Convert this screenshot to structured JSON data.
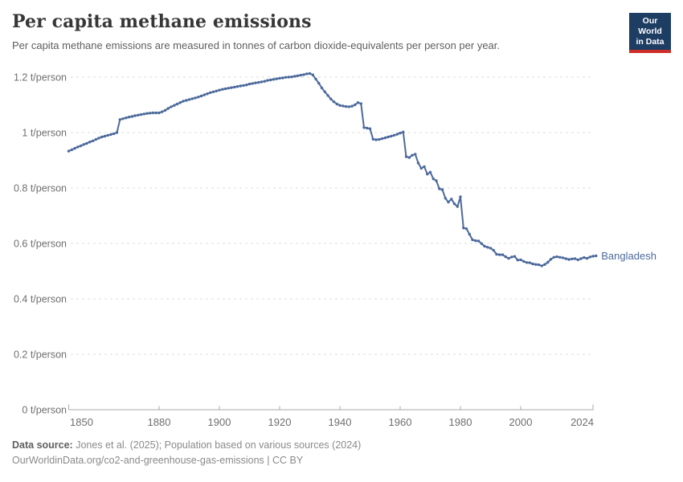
{
  "header": {
    "title": "Per capita methane emissions",
    "subtitle": "Per capita methane emissions are measured in tonnes of carbon dioxide-equivalents per person per year."
  },
  "logo": {
    "line1": "Our World",
    "line2": "in Data",
    "bg_color": "#1d3d63",
    "accent_color": "#cf2d27"
  },
  "chart_data": {
    "type": "line",
    "title": "Per capita methane emissions",
    "unit": "t/person",
    "x_start": 1850,
    "x_end": 2024,
    "xticks": [
      1850,
      1880,
      1900,
      1920,
      1940,
      1960,
      1980,
      2000,
      2024
    ],
    "yticks": [
      0,
      0.2,
      0.4,
      0.6,
      0.8,
      1,
      1.2
    ],
    "ytick_labels": [
      "0 t/person",
      "0.2 t/person",
      "0.4 t/person",
      "0.6 t/person",
      "0.8 t/person",
      "1 t/person",
      "1.2 t/person"
    ],
    "ylim": [
      0,
      1.2
    ],
    "grid": "dashed-horizontal",
    "legend_position": "end-of-line-label",
    "grid_color": "#dcdcdc",
    "axis_color": "#a9a9a9",
    "tick_label_color": "#6f6f6f",
    "series": [
      {
        "name": "Bangladesh",
        "color": "#4c6a9c",
        "start_year": 1850,
        "values": [
          0.933,
          0.938,
          0.943,
          0.948,
          0.952,
          0.957,
          0.961,
          0.966,
          0.97,
          0.975,
          0.98,
          0.984,
          0.987,
          0.99,
          0.993,
          0.996,
          1.0,
          1.047,
          1.05,
          1.053,
          1.056,
          1.058,
          1.061,
          1.063,
          1.065,
          1.067,
          1.069,
          1.07,
          1.071,
          1.071,
          1.071,
          1.075,
          1.08,
          1.087,
          1.093,
          1.098,
          1.103,
          1.108,
          1.113,
          1.116,
          1.119,
          1.122,
          1.125,
          1.128,
          1.132,
          1.136,
          1.14,
          1.144,
          1.147,
          1.15,
          1.153,
          1.156,
          1.158,
          1.16,
          1.162,
          1.164,
          1.166,
          1.168,
          1.17,
          1.172,
          1.175,
          1.177,
          1.179,
          1.181,
          1.183,
          1.185,
          1.188,
          1.19,
          1.192,
          1.194,
          1.196,
          1.197,
          1.199,
          1.2,
          1.201,
          1.203,
          1.205,
          1.207,
          1.209,
          1.212,
          1.213,
          1.208,
          1.193,
          1.178,
          1.161,
          1.147,
          1.134,
          1.121,
          1.111,
          1.103,
          1.098,
          1.096,
          1.094,
          1.093,
          1.095,
          1.1,
          1.108,
          1.104,
          1.018,
          1.016,
          1.014,
          0.976,
          0.974,
          0.975,
          0.978,
          0.981,
          0.984,
          0.987,
          0.99,
          0.994,
          0.998,
          1.002,
          0.913,
          0.91,
          0.918,
          0.922,
          0.89,
          0.871,
          0.877,
          0.85,
          0.857,
          0.833,
          0.826,
          0.797,
          0.794,
          0.763,
          0.749,
          0.76,
          0.743,
          0.733,
          0.768,
          0.656,
          0.653,
          0.633,
          0.613,
          0.61,
          0.609,
          0.599,
          0.59,
          0.586,
          0.583,
          0.575,
          0.561,
          0.559,
          0.559,
          0.552,
          0.546,
          0.551,
          0.553,
          0.54,
          0.541,
          0.535,
          0.531,
          0.53,
          0.526,
          0.524,
          0.523,
          0.519,
          0.524,
          0.532,
          0.543,
          0.55,
          0.552,
          0.55,
          0.548,
          0.545,
          0.542,
          0.544,
          0.545,
          0.541,
          0.545,
          0.549,
          0.546,
          0.551,
          0.554,
          0.555
        ]
      }
    ]
  },
  "footer": {
    "datasource_label": "Data source:",
    "datasource_text": " Jones et al. (2025); Population based on various sources (2024)",
    "license_line": "OurWorldinData.org/co2-and-greenhouse-gas-emissions | CC BY"
  }
}
